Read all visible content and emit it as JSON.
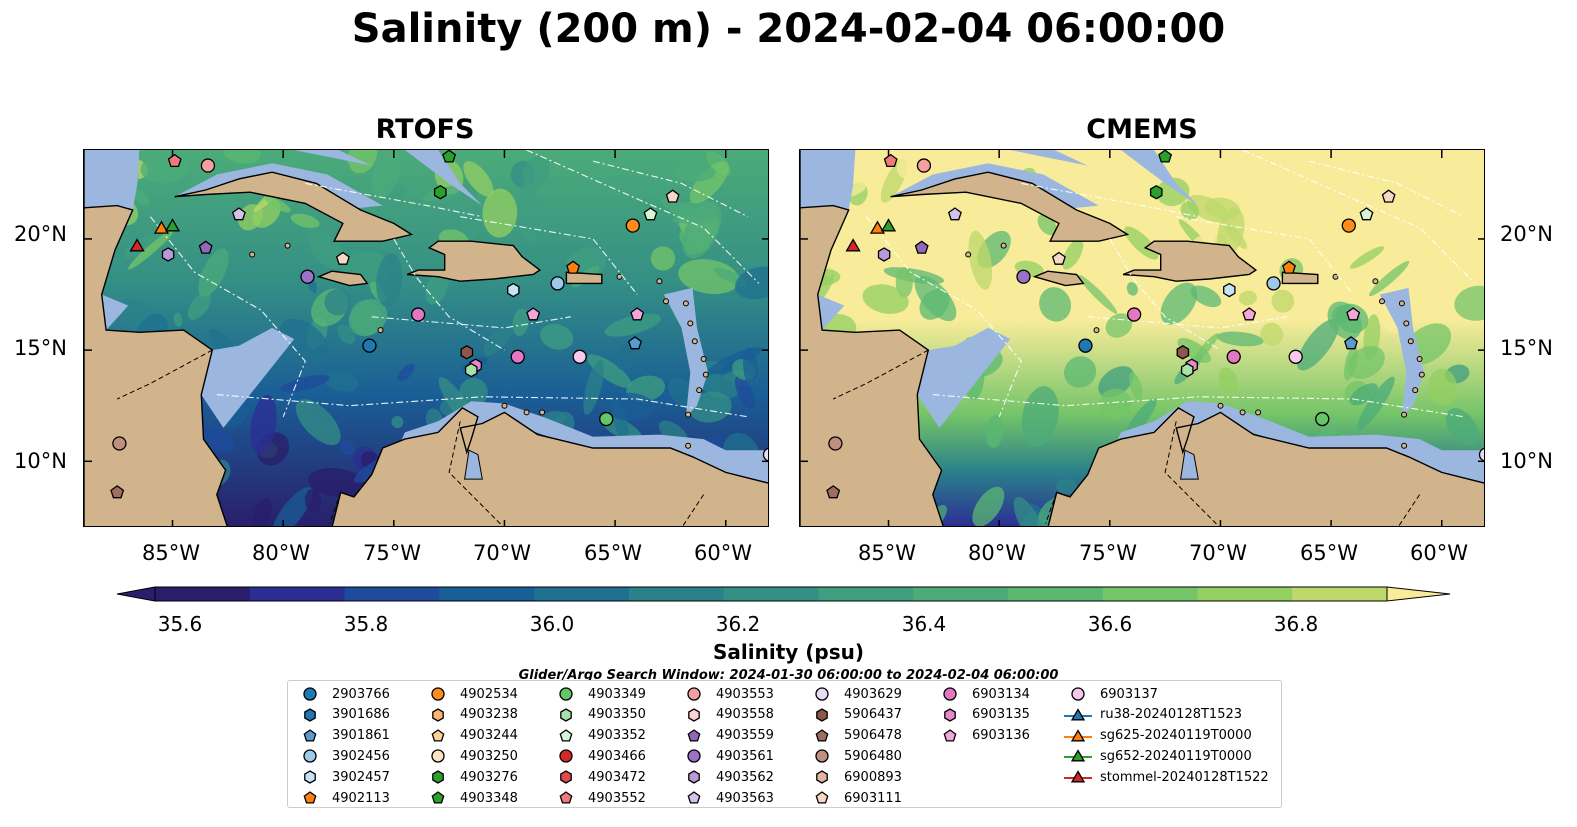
{
  "title": "Salinity (200 m) - 2024-02-04 06:00:00",
  "panels": [
    {
      "title": "RTOFS"
    },
    {
      "title": "CMEMS"
    }
  ],
  "axes": {
    "lon_ticks": [
      "85°W",
      "80°W",
      "75°W",
      "70°W",
      "65°W",
      "60°W"
    ],
    "lat_ticks": [
      "20°N",
      "15°N",
      "10°N"
    ],
    "lon_range": [
      -89,
      -58
    ],
    "lat_range": [
      7,
      24
    ]
  },
  "colorbar": {
    "label": "Salinity (psu)",
    "ticks": [
      "35.6",
      "35.8",
      "36.0",
      "36.2",
      "36.4",
      "36.6",
      "36.8"
    ],
    "range": [
      35.5,
      36.9
    ],
    "colors": [
      "#2a1e6b",
      "#2b2d93",
      "#1f4b9c",
      "#1a5e96",
      "#20708f",
      "#2b818a",
      "#348f85",
      "#3f9d80",
      "#4cab79",
      "#5bb871",
      "#74c468",
      "#93cf61",
      "#bed86b",
      "#f8ec9a"
    ]
  },
  "search_window": "Glider/Argo Search Window: 2024-01-30 06:00:00 to 2024-02-04 06:00:00",
  "legend": [
    {
      "label": "2903766",
      "marker": "circle",
      "color": "#1f77b4"
    },
    {
      "label": "3901686",
      "marker": "hexagon",
      "color": "#1f77b4"
    },
    {
      "label": "3901861",
      "marker": "pentagon",
      "color": "#5a9bd0"
    },
    {
      "label": "3902456",
      "marker": "circle",
      "color": "#9ecae9"
    },
    {
      "label": "3902457",
      "marker": "hexagon",
      "color": "#c6e2f7"
    },
    {
      "label": "4902113",
      "marker": "pentagon",
      "color": "#ff7f0e"
    },
    {
      "label": "4902534",
      "marker": "circle",
      "color": "#ff8c1a"
    },
    {
      "label": "4903238",
      "marker": "hexagon",
      "color": "#ffb56b"
    },
    {
      "label": "4903244",
      "marker": "pentagon",
      "color": "#ffcf94"
    },
    {
      "label": "4903250",
      "marker": "circle",
      "color": "#ffe4c4"
    },
    {
      "label": "4903276",
      "marker": "hexagon",
      "color": "#2ca02c"
    },
    {
      "label": "4903348",
      "marker": "pentagon",
      "color": "#2ca02c"
    },
    {
      "label": "4903349",
      "marker": "circle",
      "color": "#66c566"
    },
    {
      "label": "4903350",
      "marker": "hexagon",
      "color": "#a8e2a8"
    },
    {
      "label": "4903352",
      "marker": "pentagon",
      "color": "#d6f5d6"
    },
    {
      "label": "4903466",
      "marker": "circle",
      "color": "#d62728"
    },
    {
      "label": "4903472",
      "marker": "hexagon",
      "color": "#e04a4a"
    },
    {
      "label": "4903552",
      "marker": "pentagon",
      "color": "#f07a7a"
    },
    {
      "label": "4903553",
      "marker": "circle",
      "color": "#f4a0a0"
    },
    {
      "label": "4903558",
      "marker": "hexagon",
      "color": "#fcd1d1"
    },
    {
      "label": "4903559",
      "marker": "pentagon",
      "color": "#9467bd"
    },
    {
      "label": "4903561",
      "marker": "circle",
      "color": "#9b72c8"
    },
    {
      "label": "4903562",
      "marker": "hexagon",
      "color": "#b79ad8"
    },
    {
      "label": "4903563",
      "marker": "pentagon",
      "color": "#d4c1ea"
    },
    {
      "label": "4903629",
      "marker": "circle",
      "color": "#e7dcf4"
    },
    {
      "label": "5906437",
      "marker": "hexagon",
      "color": "#8c564b"
    },
    {
      "label": "5906478",
      "marker": "pentagon",
      "color": "#a06e60"
    },
    {
      "label": "5906480",
      "marker": "circle",
      "color": "#c0907f"
    },
    {
      "label": "6900893",
      "marker": "hexagon",
      "color": "#e1b59f"
    },
    {
      "label": "6903111",
      "marker": "pentagon",
      "color": "#f6d7c8"
    },
    {
      "label": "6903134",
      "marker": "circle",
      "color": "#e377c2"
    },
    {
      "label": "6903135",
      "marker": "hexagon",
      "color": "#ea86cc"
    },
    {
      "label": "6903136",
      "marker": "pentagon",
      "color": "#f3a6da"
    },
    {
      "label": "6903137",
      "marker": "circle",
      "color": "#f7c9ea"
    },
    {
      "label": "ru38-20240128T1523",
      "marker": "triangle",
      "color": "#1f77b4",
      "line": true
    },
    {
      "label": "sg625-20240119T0000",
      "marker": "triangle",
      "color": "#ff7f0e",
      "line": true
    },
    {
      "label": "sg652-20240119T0000",
      "marker": "triangle",
      "color": "#2ca02c",
      "line": true
    },
    {
      "label": "stommel-20240128T1522",
      "marker": "triangle",
      "color": "#d62728",
      "line": true
    }
  ],
  "points": [
    {
      "lon": -76.1,
      "lat": 15.2,
      "legend": 0
    },
    {
      "lon": -66.6,
      "lat": 14.7,
      "legend": 33
    },
    {
      "lon": -69.4,
      "lat": 14.7,
      "legend": 30
    },
    {
      "lon": -73.9,
      "lat": 16.6,
      "legend": 30
    },
    {
      "lon": -68.7,
      "lat": 16.6,
      "legend": 32
    },
    {
      "lon": -64.0,
      "lat": 16.6,
      "legend": 32
    },
    {
      "lon": -64.1,
      "lat": 15.3,
      "legend": 2
    },
    {
      "lon": -71.3,
      "lat": 14.3,
      "legend": 31
    },
    {
      "lon": -71.5,
      "lat": 14.1,
      "legend": 13
    },
    {
      "lon": -71.7,
      "lat": 14.9,
      "legend": 25
    },
    {
      "lon": -65.4,
      "lat": 11.9,
      "legend": 12
    },
    {
      "lon": -67.6,
      "lat": 18.0,
      "legend": 3
    },
    {
      "lon": -69.6,
      "lat": 17.7,
      "legend": 4
    },
    {
      "lon": -66.9,
      "lat": 18.7,
      "legend": 5
    },
    {
      "lon": -64.2,
      "lat": 20.6,
      "legend": 6
    },
    {
      "lon": -63.4,
      "lat": 21.1,
      "legend": 14
    },
    {
      "lon": -62.4,
      "lat": 21.9,
      "legend": 29
    },
    {
      "lon": -77.3,
      "lat": 19.1,
      "legend": 29
    },
    {
      "lon": -78.9,
      "lat": 18.3,
      "legend": 21
    },
    {
      "lon": -83.5,
      "lat": 19.6,
      "legend": 20
    },
    {
      "lon": -82.0,
      "lat": 21.1,
      "legend": 23
    },
    {
      "lon": -85.2,
      "lat": 19.3,
      "legend": 22
    },
    {
      "lon": -83.4,
      "lat": 23.3,
      "legend": 18
    },
    {
      "lon": -84.9,
      "lat": 23.5,
      "legend": 17
    },
    {
      "lon": -72.9,
      "lat": 22.1,
      "legend": 10
    },
    {
      "lon": -72.5,
      "lat": 23.7,
      "legend": 11
    },
    {
      "lon": -87.4,
      "lat": 10.8,
      "legend": 27
    },
    {
      "lon": -87.5,
      "lat": 8.6,
      "legend": 26
    },
    {
      "lon": -58.0,
      "lat": 10.3,
      "legend": 24
    },
    {
      "lon": -85.5,
      "lat": 20.5,
      "legend": 35
    },
    {
      "lon": -85.0,
      "lat": 20.6,
      "legend": 36
    },
    {
      "lon": -86.6,
      "lat": 19.7,
      "legend": 37
    }
  ]
}
